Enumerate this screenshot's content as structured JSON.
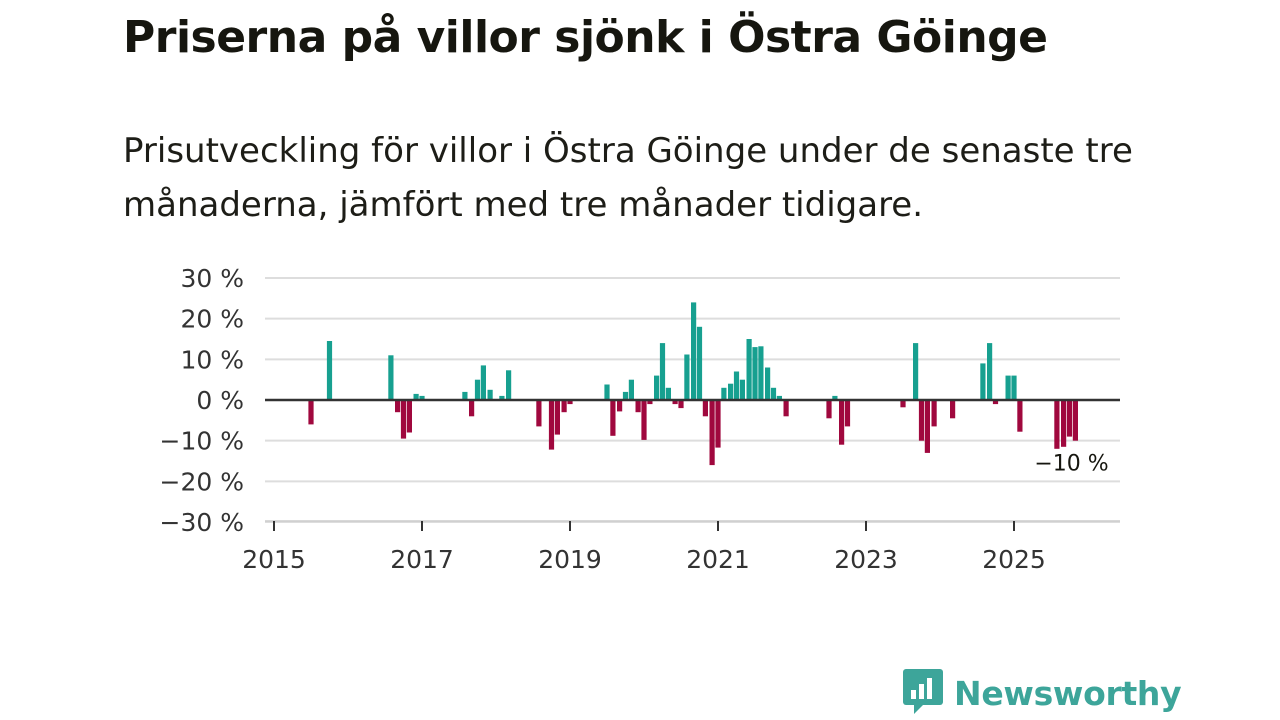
{
  "title": "Priserna på villor sjönk i Östra Göinge",
  "subtitle": "Prisutveckling för villor i Östra Göinge under de senaste tre månaderna, jämfört med tre månader tidigare.",
  "brand": {
    "name": "Newsworthy",
    "icon": "newsworthy-logo-icon"
  },
  "colors": {
    "positive": "#17a090",
    "negative": "#a0083e",
    "grid": "#dddddd",
    "zero_line": "#333333",
    "brand": "#3da59a"
  },
  "chart_data": {
    "type": "bar",
    "title": "",
    "xlabel": "",
    "ylabel": "",
    "unit": "%",
    "ylim": [
      -30,
      30
    ],
    "y_ticks": [
      {
        "value": 30,
        "label": "30 %"
      },
      {
        "value": 20,
        "label": "20 %"
      },
      {
        "value": 10,
        "label": "10 %"
      },
      {
        "value": 0,
        "label": "0 %"
      },
      {
        "value": -10,
        "label": "−10 %"
      },
      {
        "value": -20,
        "label": "−20 %"
      },
      {
        "value": -30,
        "label": "−30 %"
      }
    ],
    "x_range": [
      2015.0,
      2026.4
    ],
    "x_ticks": [
      {
        "value": 2015,
        "label": "2015"
      },
      {
        "value": 2017,
        "label": "2017"
      },
      {
        "value": 2019,
        "label": "2019"
      },
      {
        "value": 2021,
        "label": "2021"
      },
      {
        "value": 2023,
        "label": "2023"
      },
      {
        "value": 2025,
        "label": "2025"
      }
    ],
    "annotation": {
      "label": "−10 %",
      "x": 2025.75,
      "y": -10
    },
    "x": [
      2015.5,
      2015.75,
      2016.58,
      2016.67,
      2016.75,
      2016.83,
      2016.92,
      2017.0,
      2017.58,
      2017.67,
      2017.75,
      2017.83,
      2017.92,
      2018.08,
      2018.17,
      2018.58,
      2018.75,
      2018.83,
      2018.92,
      2019.0,
      2019.5,
      2019.58,
      2019.67,
      2019.75,
      2019.83,
      2019.92,
      2020.0,
      2020.08,
      2020.17,
      2020.25,
      2020.33,
      2020.42,
      2020.5,
      2020.58,
      2020.67,
      2020.75,
      2020.83,
      2020.92,
      2021.0,
      2021.08,
      2021.17,
      2021.25,
      2021.33,
      2021.42,
      2021.5,
      2021.58,
      2021.67,
      2021.75,
      2021.83,
      2021.92,
      2022.5,
      2022.58,
      2022.67,
      2022.75,
      2023.5,
      2023.67,
      2023.75,
      2023.83,
      2023.92,
      2024.17,
      2024.58,
      2024.67,
      2024.75,
      2024.92,
      2025.0,
      2025.08,
      2025.58,
      2025.67,
      2025.75,
      2025.83
    ],
    "values": [
      -6,
      14.5,
      11,
      -3,
      -9.5,
      -8,
      1.5,
      1,
      2,
      -4,
      5,
      8.5,
      2.5,
      1,
      7.3,
      -6.5,
      -12.2,
      -8.5,
      -3,
      -1,
      3.8,
      -8.8,
      -2.8,
      2,
      5,
      -3,
      -9.8,
      -1,
      6,
      14,
      3,
      -1,
      -2,
      11.2,
      24,
      18,
      -4,
      -16,
      -11.7,
      3,
      4,
      7,
      5,
      15,
      13,
      13.2,
      8,
      3,
      1,
      -4,
      -4.5,
      1,
      -11,
      -6.5,
      -1.8,
      14,
      -10,
      -13,
      -6.5,
      -4.5,
      9,
      14,
      -1,
      6,
      6,
      -7.8,
      -12,
      -11.5,
      -9,
      -10
    ]
  }
}
